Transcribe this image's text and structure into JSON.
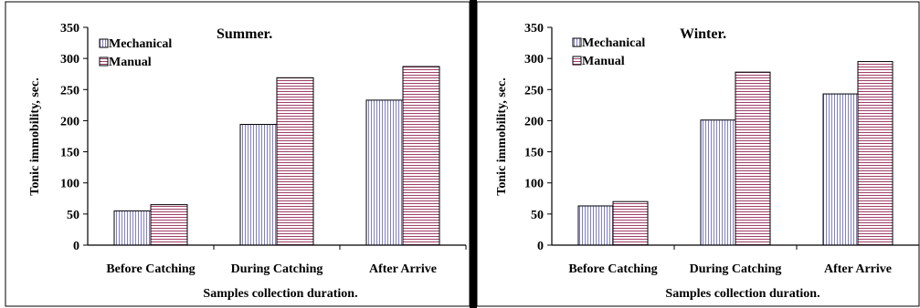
{
  "chart_data": [
    {
      "type": "bar",
      "title": "Summer.",
      "xlabel": "Samples collection duration.",
      "ylabel": "Tonic immobility, sec.",
      "categories": [
        "Before Catching",
        "During Catching",
        "After Arrive"
      ],
      "ylim": [
        0,
        350
      ],
      "yticks": [
        "0",
        "50",
        "100",
        "150",
        "200",
        "250",
        "300",
        "350"
      ],
      "grid": false,
      "legend_position": "top-left",
      "series": [
        {
          "name": "Mechanical",
          "values": [
            55,
            194,
            233
          ],
          "pattern": "vertical-stripes",
          "color": "#8080c8"
        },
        {
          "name": "Manual",
          "values": [
            65,
            269,
            287
          ],
          "pattern": "horizontal-stripes",
          "color": "#a0406a"
        }
      ]
    },
    {
      "type": "bar",
      "title": "Winter.",
      "xlabel": "Samples collection duration.",
      "ylabel": "Tonic immobility, sec.",
      "categories": [
        "Before Catching",
        "During Catching",
        "After Arrive"
      ],
      "ylim": [
        0,
        350
      ],
      "yticks": [
        "0",
        "50",
        "100",
        "150",
        "200",
        "250",
        "300",
        "350"
      ],
      "grid": false,
      "legend_position": "top-left",
      "series": [
        {
          "name": "Mechanical",
          "values": [
            63,
            201,
            243
          ],
          "pattern": "vertical-stripes",
          "color": "#8080c8"
        },
        {
          "name": "Manual",
          "values": [
            70,
            278,
            295
          ],
          "pattern": "horizontal-stripes",
          "color": "#a0406a"
        }
      ]
    }
  ]
}
